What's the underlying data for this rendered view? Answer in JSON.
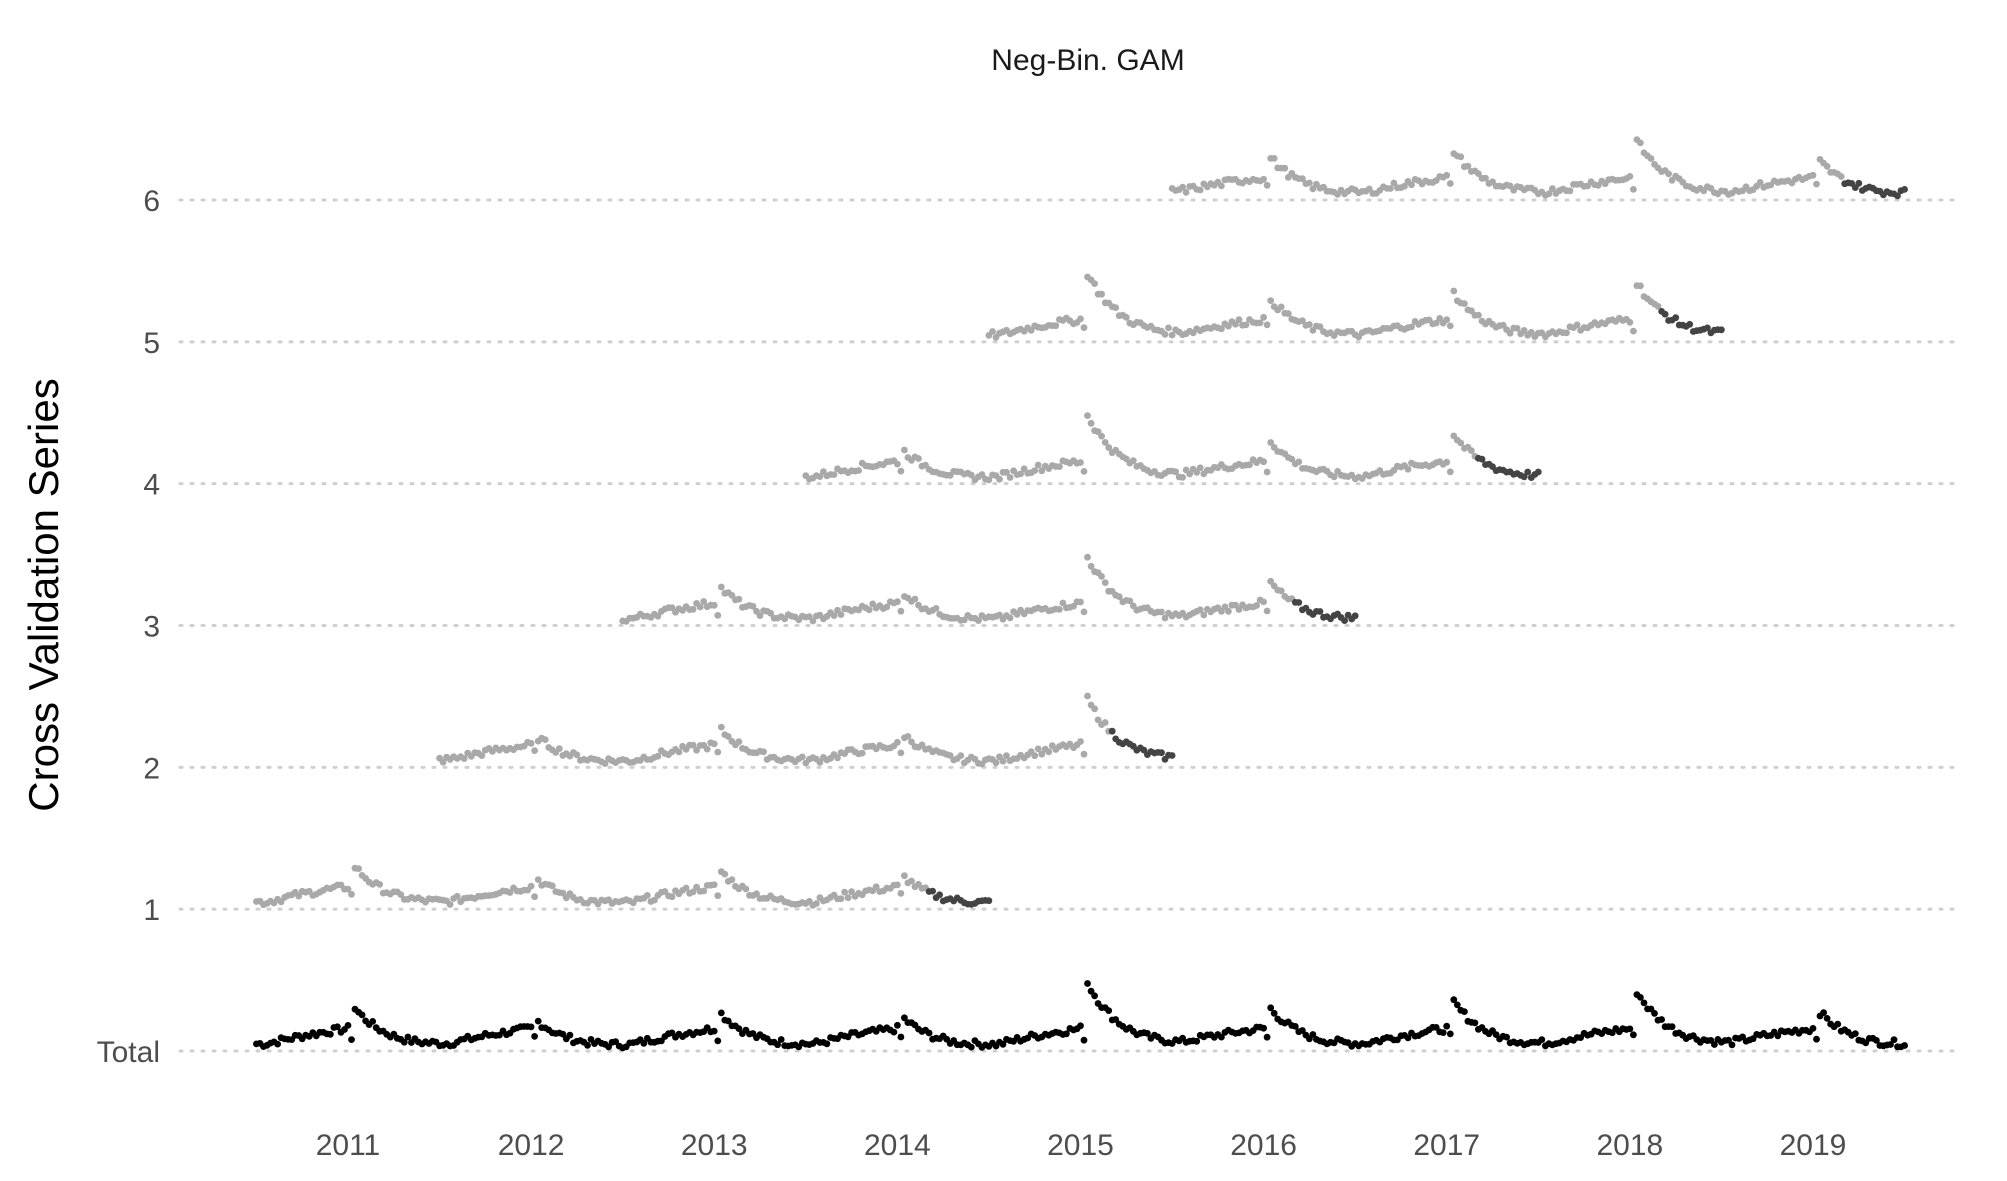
{
  "chart_data": {
    "type": "scatter",
    "title": "Neg-Bin. GAM",
    "xlabel": "",
    "ylabel": "Cross Validation Series",
    "x_ticks": [
      "2011",
      "2012",
      "2013",
      "2014",
      "2015",
      "2016",
      "2017",
      "2018",
      "2019"
    ],
    "y_categories": [
      "Total",
      "1",
      "2",
      "3",
      "4",
      "5",
      "6"
    ],
    "xlim": [
      "2010-06-01",
      "2019-12-01"
    ],
    "grid": "horizontal dotted",
    "legend": "none",
    "colors": {
      "observed_total": "#000000",
      "training_points": "#a9a9a9",
      "test_points": "#444444",
      "fit_line": "#ff9b9b",
      "forecast_line": "#e00000",
      "grid": "#cfcfcf"
    },
    "series": [
      {
        "row": "Total",
        "start": "2010-07-01",
        "train_end": "2019-07-01",
        "forecast_end": "2019-07-01"
      },
      {
        "row": "1",
        "start": "2010-07-01",
        "train_end": "2014-03-01",
        "forecast_end": "2014-07-01"
      },
      {
        "row": "2",
        "start": "2011-07-01",
        "train_end": "2015-03-01",
        "forecast_end": "2015-07-01"
      },
      {
        "row": "3",
        "start": "2012-07-01",
        "train_end": "2016-03-01",
        "forecast_end": "2016-07-01"
      },
      {
        "row": "4",
        "start": "2013-07-01",
        "train_end": "2017-03-01",
        "forecast_end": "2017-07-01"
      },
      {
        "row": "5",
        "start": "2014-07-01",
        "train_end": "2018-03-01",
        "forecast_end": "2018-07-01"
      },
      {
        "row": "6",
        "start": "2015-07-01",
        "train_end": "2019-03-01",
        "forecast_end": "2019-07-01"
      }
    ],
    "seasonal_peak_heights": {
      "2011": 0.3,
      "2012": 0.2,
      "2013": 0.26,
      "2014": 0.22,
      "2015": 0.5,
      "2016": 0.3,
      "2017": 0.35,
      "2018": 0.43,
      "2019": 0.27
    }
  }
}
